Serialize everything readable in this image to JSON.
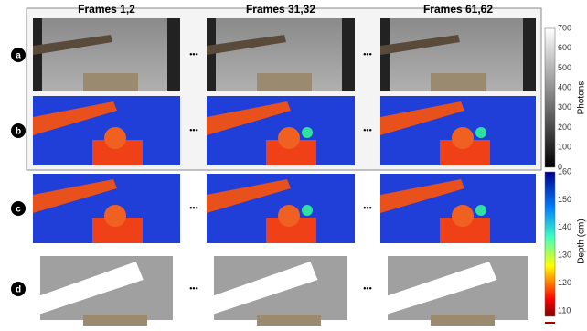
{
  "columns": [
    "Frames 1,2",
    "Frames 31,32",
    "Frames 61,62"
  ],
  "rows": [
    "a",
    "b",
    "c",
    "d"
  ],
  "ellipsis": "•••",
  "colorbars": [
    {
      "label": "Photons",
      "ticks": [
        0,
        100,
        200,
        300,
        400,
        500,
        600,
        700
      ]
    },
    {
      "label": "Depth (cm)",
      "ticks": [
        110,
        120,
        130,
        140,
        150,
        160
      ]
    }
  ]
}
